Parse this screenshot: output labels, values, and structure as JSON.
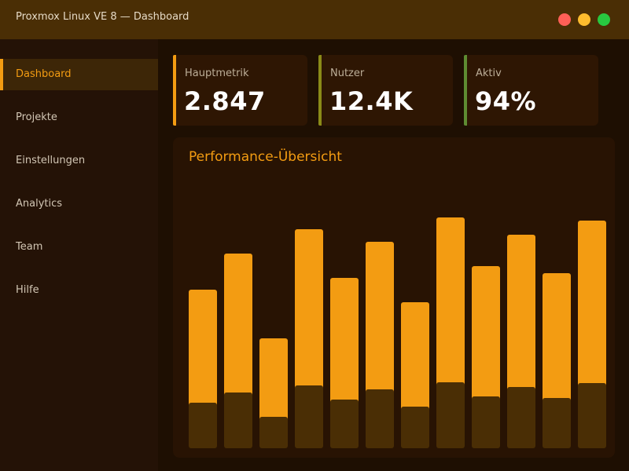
{
  "window": {
    "title": "Proxmox Linux VE 8 — Dashboard"
  },
  "sidebar": {
    "items": [
      {
        "label": "Dashboard",
        "active": true
      },
      {
        "label": "Projekte",
        "active": false
      },
      {
        "label": "Einstellungen",
        "active": false
      },
      {
        "label": "Analytics",
        "active": false
      },
      {
        "label": "Team",
        "active": false
      },
      {
        "label": "Hilfe",
        "active": false
      }
    ]
  },
  "stats": [
    {
      "label": "Hauptmetrik",
      "value": "2.847",
      "accent": "#f39c12"
    },
    {
      "label": "Nutzer",
      "value": "12.4K",
      "accent": "#8a8a18"
    },
    {
      "label": "Aktiv",
      "value": "94%",
      "accent": "#5e8c32"
    }
  ],
  "colors": {
    "accent": "#f39c12",
    "bar_top": "#f39c12",
    "bar_bottom": "#4a2e05",
    "titlebar": "#4a2e05",
    "background": "#1e0f02"
  },
  "chart_data": {
    "type": "bar",
    "title": "Performance-Übersicht",
    "series": [
      {
        "values": [
          144,
          177,
          100,
          199,
          155,
          188,
          133,
          210,
          166,
          194,
          159,
          207
        ]
      },
      {
        "values": [
          58,
          71,
          40,
          80,
          62,
          75,
          53,
          84,
          66,
          78,
          64,
          83
        ]
      }
    ],
    "ylim": [
      0,
      300
    ]
  }
}
